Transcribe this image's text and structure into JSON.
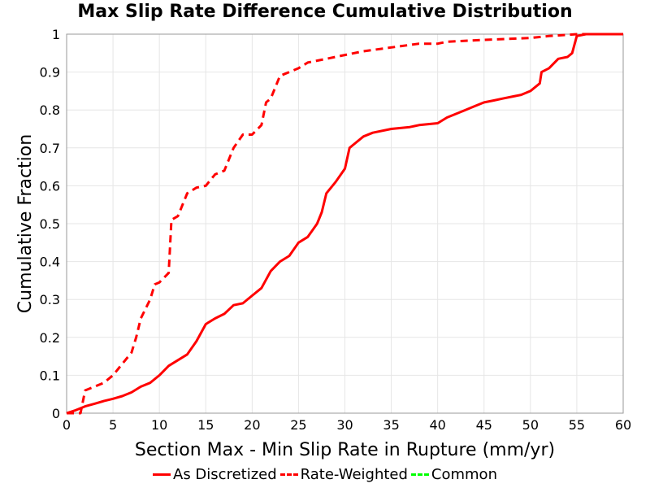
{
  "chart_data": {
    "type": "line",
    "title": "Max Slip Rate Difference Cumulative Distribution",
    "xlabel": "Section Max - Min Slip Rate in Rupture (mm/yr)",
    "ylabel": "Cumulative Fraction",
    "xlim": [
      0,
      60
    ],
    "ylim": [
      0,
      1
    ],
    "x_ticks": [
      0,
      5,
      10,
      15,
      20,
      25,
      30,
      35,
      40,
      45,
      50,
      55,
      60
    ],
    "y_ticks": [
      0,
      0.1,
      0.2,
      0.3,
      0.4,
      0.5,
      0.6,
      0.7,
      0.8,
      0.9,
      1
    ],
    "x_tick_labels": [
      "0",
      "5",
      "10",
      "15",
      "20",
      "25",
      "30",
      "35",
      "40",
      "45",
      "50",
      "55",
      "60"
    ],
    "y_tick_labels": [
      "0",
      "0.1",
      "0.2",
      "0.3",
      "0.4",
      "0.5",
      "0.6",
      "0.7",
      "0.8",
      "0.9",
      "1"
    ],
    "grid": true,
    "legend_position": "bottom",
    "series": [
      {
        "name": "As Discretized",
        "color": "#ff0000",
        "dash": "solid",
        "x": [
          0,
          1,
          2,
          3,
          4,
          5,
          6,
          7,
          8,
          9,
          10,
          11,
          12,
          13,
          14,
          15,
          16,
          17,
          18,
          19,
          20,
          21,
          22,
          23,
          24,
          25,
          26,
          27,
          27.5,
          28,
          29,
          30,
          30.5,
          31,
          32,
          33,
          35,
          37,
          38,
          40,
          41,
          42,
          43,
          44,
          45,
          46,
          47,
          48,
          49,
          50,
          51,
          51.2,
          52,
          53,
          54,
          54.5,
          55,
          56,
          57,
          60
        ],
        "y": [
          0,
          0.008,
          0.018,
          0.025,
          0.032,
          0.038,
          0.045,
          0.055,
          0.07,
          0.08,
          0.1,
          0.125,
          0.14,
          0.155,
          0.19,
          0.235,
          0.25,
          0.262,
          0.285,
          0.29,
          0.31,
          0.33,
          0.375,
          0.4,
          0.415,
          0.45,
          0.465,
          0.5,
          0.53,
          0.58,
          0.61,
          0.645,
          0.7,
          0.71,
          0.73,
          0.74,
          0.75,
          0.755,
          0.76,
          0.765,
          0.78,
          0.79,
          0.8,
          0.81,
          0.82,
          0.825,
          0.83,
          0.835,
          0.84,
          0.85,
          0.87,
          0.9,
          0.91,
          0.935,
          0.94,
          0.95,
          0.995,
          1.0,
          1.0,
          1.0
        ]
      },
      {
        "name": "Rate-Weighted",
        "color": "#ff0000",
        "dash": "dashed",
        "x": [
          0,
          1.5,
          2,
          3,
          4,
          5,
          6,
          7,
          7.5,
          8,
          9,
          9.5,
          10,
          11,
          11.3,
          12,
          13,
          14,
          15,
          16,
          17,
          18,
          19,
          20,
          21,
          21.5,
          22,
          23,
          24,
          25,
          26,
          28,
          30,
          32,
          35,
          38,
          40,
          41,
          45,
          50,
          52,
          55,
          60
        ],
        "y": [
          0,
          0.0,
          0.06,
          0.07,
          0.08,
          0.1,
          0.13,
          0.16,
          0.2,
          0.25,
          0.3,
          0.34,
          0.345,
          0.37,
          0.51,
          0.52,
          0.58,
          0.595,
          0.6,
          0.63,
          0.64,
          0.7,
          0.735,
          0.735,
          0.76,
          0.82,
          0.83,
          0.89,
          0.9,
          0.91,
          0.925,
          0.935,
          0.945,
          0.955,
          0.965,
          0.975,
          0.975,
          0.98,
          0.985,
          0.99,
          0.995,
          1.0,
          1.0
        ]
      },
      {
        "name": "Common",
        "color": "#00ff00",
        "dash": "dashed",
        "x": [],
        "y": []
      }
    ]
  }
}
